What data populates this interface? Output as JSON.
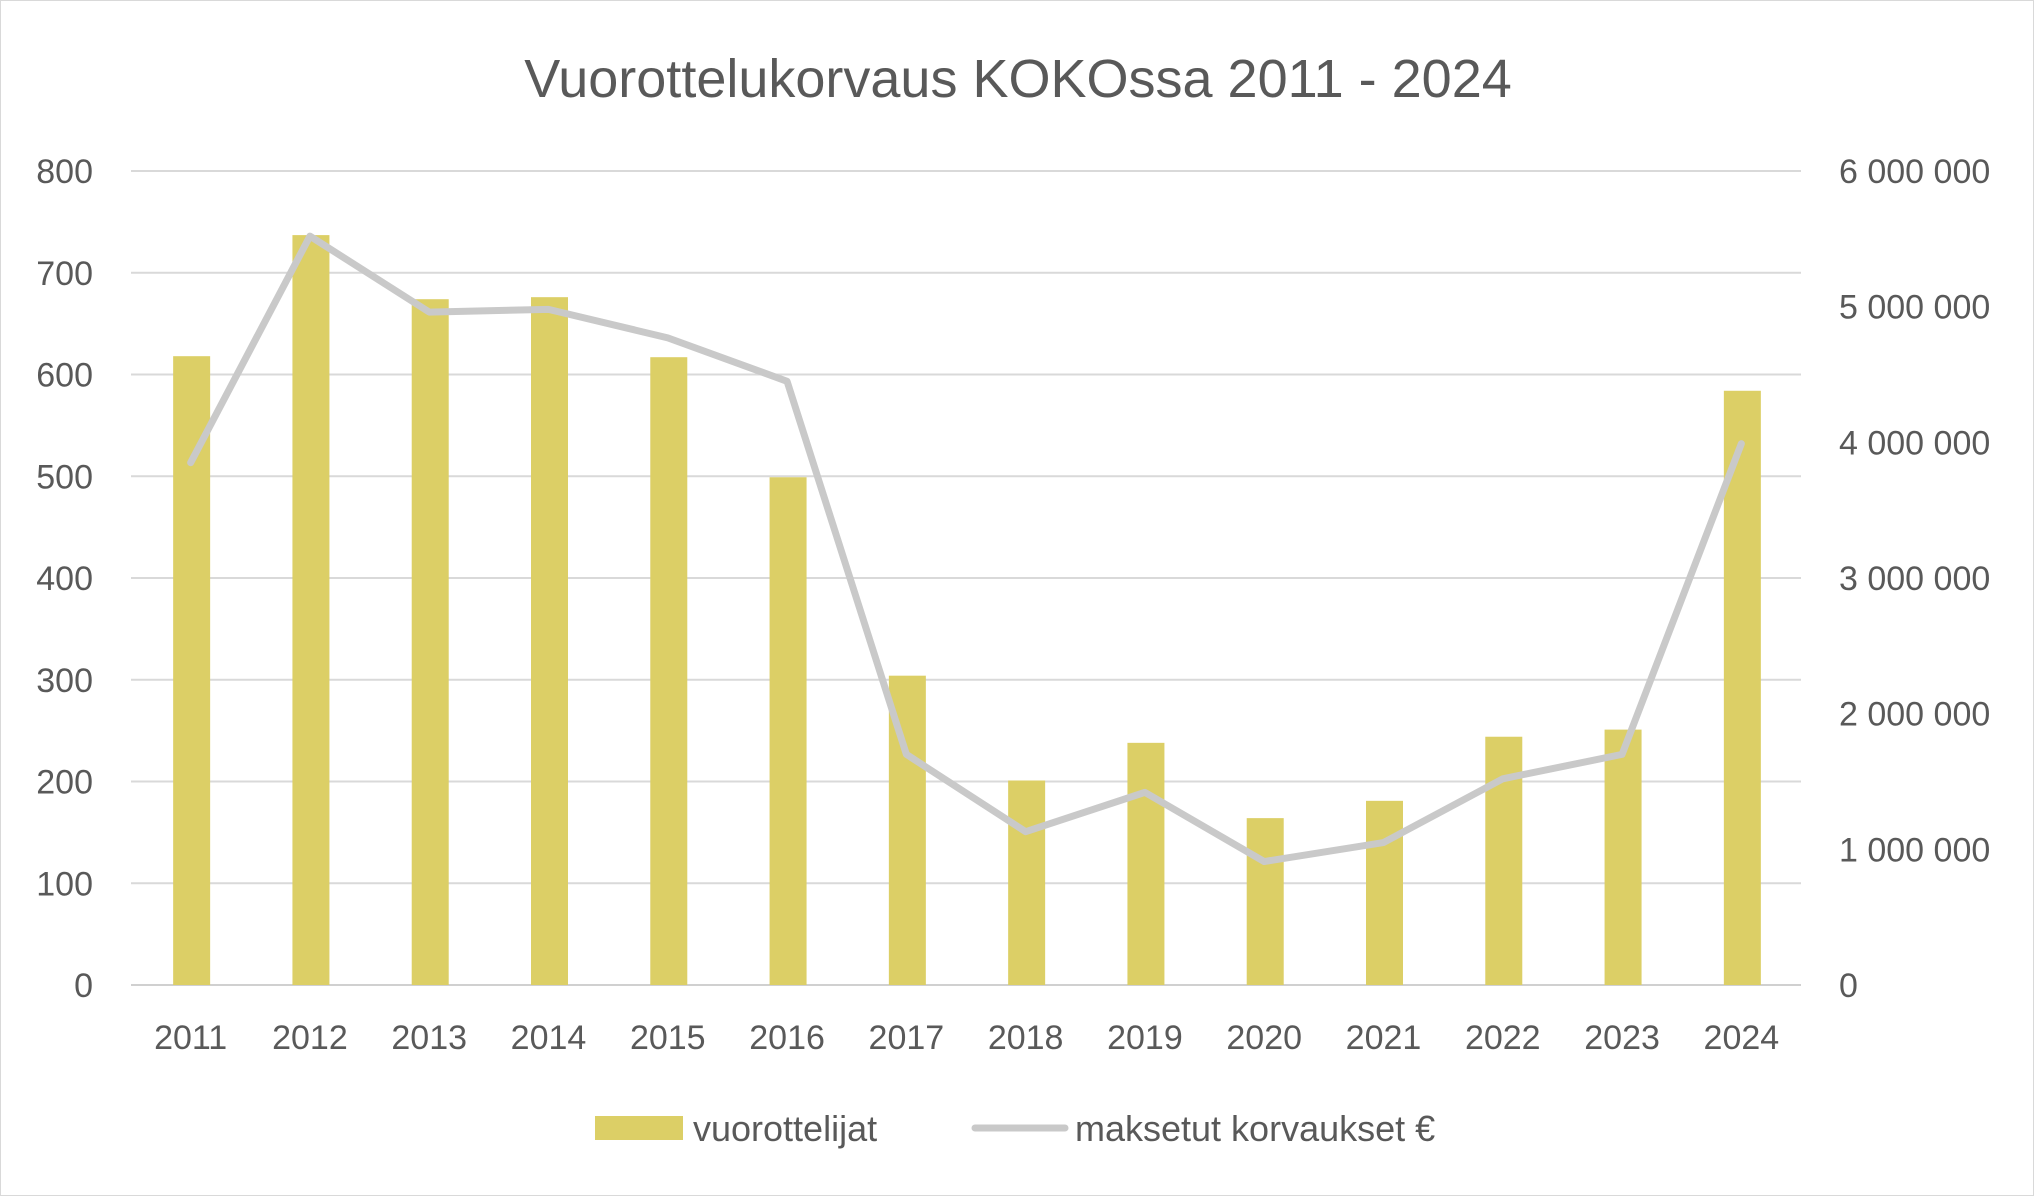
{
  "chart_data": {
    "type": "bar",
    "title": "Vuorottelukorvaus KOKOssa 2011 - 2024",
    "categories": [
      "2011",
      "2012",
      "2013",
      "2014",
      "2015",
      "2016",
      "2017",
      "2018",
      "2019",
      "2020",
      "2021",
      "2022",
      "2023",
      "2024"
    ],
    "series": [
      {
        "name": "vuorottelijat",
        "type": "bar",
        "axis": "left",
        "color": "#dccf66",
        "values": [
          618,
          737,
          674,
          676,
          617,
          499,
          304,
          201,
          238,
          164,
          181,
          244,
          251,
          584
        ]
      },
      {
        "name": "maksetut korvaukset €",
        "type": "line",
        "axis": "right",
        "color": "#c9c9c9",
        "values": [
          3850000,
          5520000,
          4960000,
          4980000,
          4770000,
          4450000,
          1700000,
          1130000,
          1420000,
          910000,
          1050000,
          1520000,
          1700000,
          3990000
        ]
      }
    ],
    "y_left": {
      "range": [
        0,
        800
      ],
      "ticks": [
        0,
        100,
        200,
        300,
        400,
        500,
        600,
        700,
        800
      ],
      "tick_labels": [
        "0",
        "100",
        "200",
        "300",
        "400",
        "500",
        "600",
        "700",
        "800"
      ]
    },
    "y_right": {
      "range": [
        0,
        6000000
      ],
      "ticks": [
        0,
        1000000,
        2000000,
        3000000,
        4000000,
        5000000,
        6000000
      ],
      "tick_labels": [
        "0",
        "1 000 000",
        "2 000 000",
        "3 000 000",
        "4 000 000",
        "5 000 000",
        "6 000 000"
      ]
    },
    "grid": true,
    "legend": "bottom"
  }
}
